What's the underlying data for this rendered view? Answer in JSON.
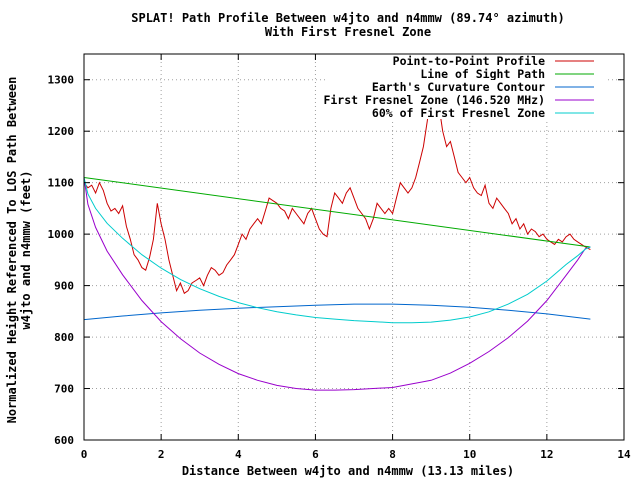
{
  "chart_data": {
    "type": "line",
    "title": "SPLAT! Path Profile Between w4jto and n4mmw (89.74° azimuth)",
    "subtitle": "With First Fresnel Zone",
    "xlabel": "Distance Between w4jto and n4mmw (13.13 miles)",
    "ylabel_line1": "Normalized Height Referenced To LOS Path Between",
    "ylabel_line2": "w4jto and n4mmw (feet)",
    "xlim": [
      0,
      14
    ],
    "ylim": [
      600,
      1350
    ],
    "x_ticks": [
      "0",
      "2",
      "4",
      "6",
      "8",
      "10",
      "12",
      "14"
    ],
    "x_tick_values": [
      0,
      2,
      4,
      6,
      8,
      10,
      12,
      14
    ],
    "y_ticks": [
      "600",
      "700",
      "800",
      "900",
      "1000",
      "1100",
      "1200",
      "1300"
    ],
    "y_tick_values": [
      600,
      700,
      800,
      900,
      1000,
      1100,
      1200,
      1300
    ],
    "grid": true,
    "legend_position": "top-right",
    "series": [
      {
        "name": "Point-to-Point Profile",
        "color": "#cc0000",
        "x": [
          0,
          0.1,
          0.2,
          0.3,
          0.4,
          0.5,
          0.6,
          0.7,
          0.8,
          0.9,
          1.0,
          1.1,
          1.2,
          1.3,
          1.4,
          1.5,
          1.6,
          1.7,
          1.8,
          1.9,
          2.0,
          2.1,
          2.2,
          2.3,
          2.4,
          2.5,
          2.6,
          2.7,
          2.8,
          2.9,
          3.0,
          3.1,
          3.2,
          3.3,
          3.4,
          3.5,
          3.6,
          3.7,
          3.8,
          3.9,
          4.0,
          4.1,
          4.2,
          4.3,
          4.4,
          4.5,
          4.6,
          4.7,
          4.8,
          4.9,
          5.0,
          5.1,
          5.2,
          5.3,
          5.4,
          5.5,
          5.6,
          5.7,
          5.8,
          5.9,
          6.0,
          6.1,
          6.2,
          6.3,
          6.4,
          6.5,
          6.6,
          6.7,
          6.8,
          6.9,
          7.0,
          7.1,
          7.2,
          7.3,
          7.4,
          7.5,
          7.6,
          7.7,
          7.8,
          7.9,
          8.0,
          8.1,
          8.2,
          8.3,
          8.4,
          8.5,
          8.6,
          8.7,
          8.8,
          8.9,
          9.0,
          9.1,
          9.2,
          9.3,
          9.4,
          9.5,
          9.6,
          9.7,
          9.8,
          9.9,
          10.0,
          10.1,
          10.2,
          10.3,
          10.4,
          10.5,
          10.6,
          10.7,
          10.8,
          10.9,
          11.0,
          11.1,
          11.2,
          11.3,
          11.4,
          11.5,
          11.6,
          11.7,
          11.8,
          11.9,
          12.0,
          12.1,
          12.2,
          12.3,
          12.4,
          12.5,
          12.6,
          12.7,
          12.8,
          12.9,
          13.0,
          13.13
        ],
        "values": [
          1100,
          1090,
          1095,
          1080,
          1100,
          1085,
          1060,
          1045,
          1050,
          1040,
          1055,
          1015,
          990,
          960,
          950,
          935,
          930,
          955,
          990,
          1060,
          1020,
          990,
          950,
          920,
          890,
          905,
          885,
          890,
          905,
          910,
          915,
          900,
          920,
          935,
          930,
          920,
          925,
          940,
          950,
          960,
          980,
          1000,
          990,
          1010,
          1020,
          1030,
          1020,
          1045,
          1070,
          1065,
          1060,
          1050,
          1045,
          1030,
          1050,
          1040,
          1030,
          1020,
          1040,
          1050,
          1030,
          1010,
          1000,
          995,
          1050,
          1080,
          1070,
          1060,
          1080,
          1090,
          1070,
          1050,
          1040,
          1030,
          1010,
          1030,
          1060,
          1050,
          1040,
          1050,
          1040,
          1070,
          1100,
          1090,
          1080,
          1090,
          1110,
          1140,
          1170,
          1220,
          1280,
          1320,
          1250,
          1200,
          1170,
          1180,
          1150,
          1120,
          1110,
          1100,
          1110,
          1090,
          1080,
          1075,
          1095,
          1060,
          1050,
          1070,
          1060,
          1050,
          1040,
          1020,
          1030,
          1010,
          1020,
          1000,
          1010,
          1005,
          995,
          1000,
          990,
          985,
          980,
          990,
          985,
          995,
          1000,
          990,
          985,
          980,
          975,
          970
        ]
      },
      {
        "name": "Line of Sight Path",
        "color": "#00aa00",
        "x": [
          0,
          13.13
        ],
        "values": [
          1110,
          975
        ]
      },
      {
        "name": "Earth's Curvature Contour",
        "color": "#0066cc",
        "x": [
          0,
          1,
          2,
          3,
          4,
          5,
          6,
          7,
          8,
          9,
          10,
          11,
          12,
          13.13
        ],
        "values": [
          834,
          841,
          847,
          852,
          856,
          859,
          862,
          864,
          864,
          862,
          858,
          852,
          845,
          835
        ]
      },
      {
        "name": "First Fresnel Zone (146.520 MHz)",
        "color": "#9900cc",
        "x": [
          0,
          0.1,
          0.3,
          0.6,
          1,
          1.5,
          2,
          2.5,
          3,
          3.5,
          4,
          4.5,
          5,
          5.5,
          6,
          6.5,
          7,
          7.5,
          8,
          8.5,
          9,
          9.5,
          10,
          10.5,
          11,
          11.5,
          12,
          12.5,
          12.8,
          13,
          13.13
        ],
        "values": [
          1110,
          1058,
          1013,
          967,
          921,
          871,
          830,
          797,
          769,
          747,
          729,
          716,
          706,
          700,
          697,
          697,
          698,
          700,
          702,
          709,
          716,
          730,
          749,
          772,
          799,
          831,
          871,
          920,
          950,
          972,
          975
        ]
      },
      {
        "name": "60% of First Fresnel Zone",
        "color": "#00cccc",
        "x": [
          0,
          0.1,
          0.3,
          0.6,
          1,
          1.5,
          2,
          2.5,
          3,
          3.5,
          4,
          4.5,
          5,
          5.5,
          6,
          6.5,
          7,
          7.5,
          8,
          8.5,
          9,
          9.5,
          10,
          10.5,
          11,
          11.5,
          12,
          12.5,
          12.8,
          13,
          13.13
        ],
        "values": [
          1110,
          1078,
          1050,
          1021,
          992,
          960,
          934,
          912,
          894,
          879,
          867,
          857,
          849,
          843,
          838,
          835,
          832,
          830,
          828,
          828,
          829,
          833,
          839,
          849,
          864,
          883,
          909,
          941,
          958,
          971,
          975
        ]
      }
    ]
  }
}
